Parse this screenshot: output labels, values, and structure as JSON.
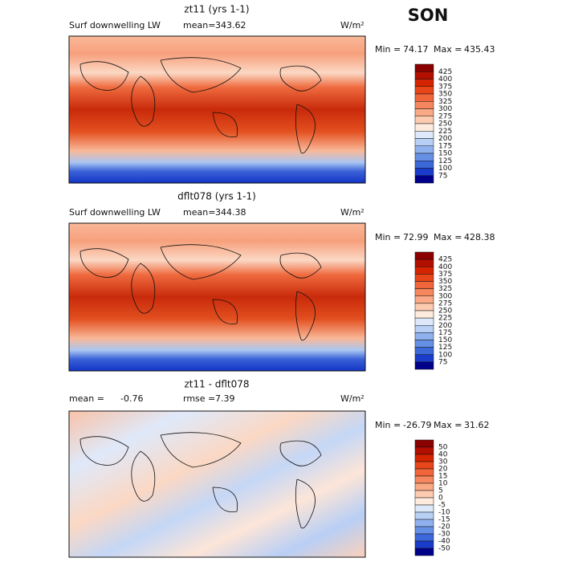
{
  "season": "SON",
  "panels": [
    {
      "title": "zt11 (yrs 1-1)",
      "left_label": "Surf downwelling LW",
      "stat_label": "mean=",
      "stat_value": "343.62",
      "units": "W/m²",
      "min_label": "Min =",
      "min": "74.17",
      "max_label": "Max =",
      "max": "435.43",
      "colorbar_labels": [
        "425",
        "400",
        "375",
        "350",
        "325",
        "300",
        "275",
        "250",
        "225",
        "200",
        "175",
        "150",
        "125",
        "100",
        "75"
      ],
      "colorbar_colors": [
        "#8b0000",
        "#b30f00",
        "#d42400",
        "#e84518",
        "#f1653a",
        "#f5875e",
        "#f9a985",
        "#fccbb0",
        "#feebdd",
        "#dde9fa",
        "#b8d0f6",
        "#8fb2ef",
        "#6690e6",
        "#3d68da",
        "#1a3ccb",
        "#00008b"
      ]
    },
    {
      "title": "dflt078 (yrs 1-1)",
      "left_label": "Surf downwelling LW",
      "stat_label": "mean=",
      "stat_value": "344.38",
      "units": "W/m²",
      "min_label": "Min =",
      "min": "72.99",
      "max_label": "Max =",
      "max": "428.38",
      "colorbar_labels": [
        "425",
        "400",
        "375",
        "350",
        "325",
        "300",
        "275",
        "250",
        "225",
        "200",
        "175",
        "150",
        "125",
        "100",
        "75"
      ],
      "colorbar_colors": [
        "#8b0000",
        "#b30f00",
        "#d42400",
        "#e84518",
        "#f1653a",
        "#f5875e",
        "#f9a985",
        "#fccbb0",
        "#feebdd",
        "#dde9fa",
        "#b8d0f6",
        "#8fb2ef",
        "#6690e6",
        "#3d68da",
        "#1a3ccb",
        "#00008b"
      ]
    },
    {
      "title": "zt11 - dflt078",
      "left_label": "mean =",
      "left_value": "-0.76",
      "stat_label": "rmse =",
      "stat_value": "7.39",
      "units": "W/m²",
      "min_label": "Min =",
      "min": "-26.79",
      "max_label": "Max =",
      "max": "31.62",
      "colorbar_labels": [
        "50",
        "40",
        "30",
        "20",
        "15",
        "10",
        "5",
        "0",
        "-5",
        "-10",
        "-15",
        "-20",
        "-30",
        "-40",
        "-50"
      ],
      "colorbar_colors": [
        "#8b0000",
        "#b30f00",
        "#d42400",
        "#e84518",
        "#f1653a",
        "#f5875e",
        "#f9a985",
        "#fccbb0",
        "#feebdd",
        "#dde9fa",
        "#b8d0f6",
        "#8fb2ef",
        "#6690e6",
        "#3d68da",
        "#1a3ccb",
        "#00008b"
      ]
    }
  ]
}
